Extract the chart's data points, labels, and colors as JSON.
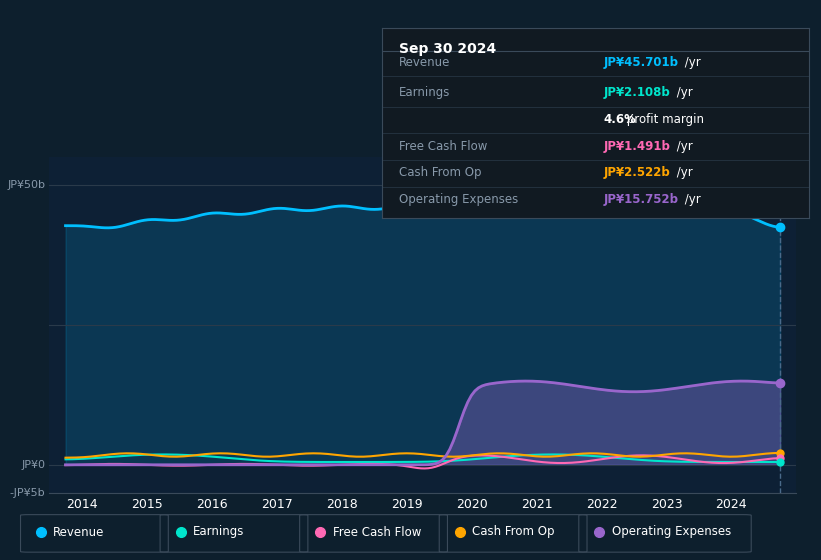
{
  "background_color": "#0d1f2d",
  "plot_bg_color": "#0d2035",
  "title": "Sep 30 2024",
  "y_label_top": "JP¥50b",
  "y_label_zero": "JP¥0",
  "y_label_neg": "-JP¥5b",
  "x_ticks": [
    2014,
    2015,
    2016,
    2017,
    2018,
    2019,
    2020,
    2021,
    2022,
    2023,
    2024
  ],
  "colors": {
    "revenue": "#00bfff",
    "earnings": "#00e5cc",
    "free_cash_flow": "#ff69b4",
    "cash_from_op": "#ffa500",
    "operating_expenses": "#9966cc"
  },
  "legend_labels": [
    "Revenue",
    "Earnings",
    "Free Cash Flow",
    "Cash From Op",
    "Operating Expenses"
  ],
  "tooltip": {
    "date": "Sep 30 2024",
    "revenue": "JP¥45.701b /yr",
    "earnings": "JP¥2.108b /yr",
    "profit_margin": "4.6% profit margin",
    "free_cash_flow": "JP¥1.491b /yr",
    "cash_from_op": "JP¥2.522b /yr",
    "operating_expenses": "JP¥15.752b /yr"
  },
  "ylim": [
    -5000000000.0,
    55000000000.0
  ],
  "xlim": [
    2013.5,
    2025.0
  ]
}
